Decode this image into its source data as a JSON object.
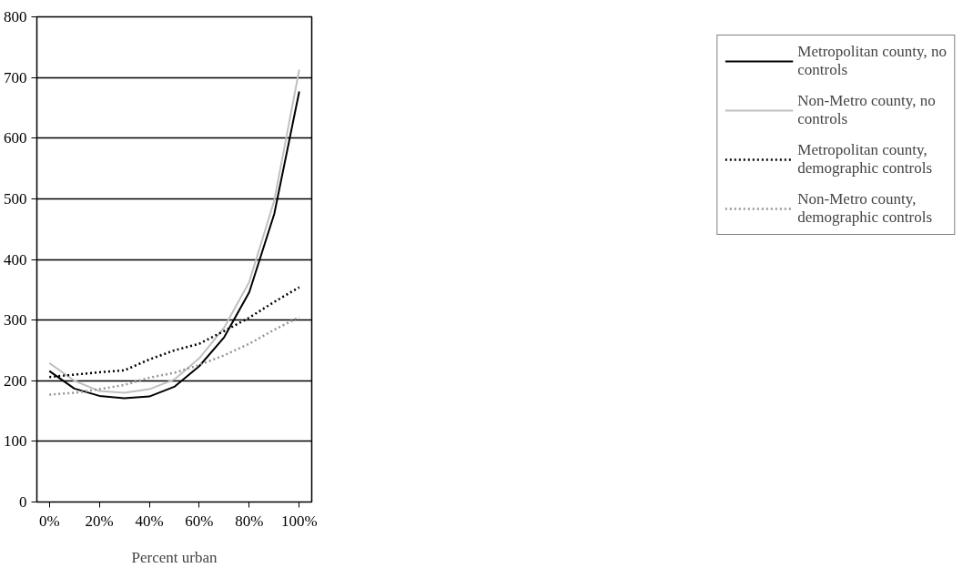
{
  "chart_data": {
    "type": "line",
    "xlabel": "Percent urban",
    "x": [
      0,
      10,
      20,
      30,
      40,
      50,
      60,
      70,
      80,
      90,
      100
    ],
    "xlim": [
      -5,
      105
    ],
    "xticks": [
      {
        "value": 0,
        "label": "0%"
      },
      {
        "value": 20,
        "label": "20%"
      },
      {
        "value": 40,
        "label": "40%"
      },
      {
        "value": 60,
        "label": "60%"
      },
      {
        "value": 80,
        "label": "80%"
      },
      {
        "value": 100,
        "label": "100%"
      }
    ],
    "ylim": [
      0,
      800
    ],
    "yticks": [
      0,
      100,
      200,
      300,
      400,
      500,
      600,
      700,
      800
    ],
    "grid": "y",
    "legend": "right",
    "marker": "none",
    "series": [
      {
        "name": "Metropolitan county, no controls",
        "color": "#000000",
        "line_style": "solid",
        "values": [
          216,
          187,
          175,
          171,
          174,
          190,
          224,
          272,
          346,
          475,
          677
        ]
      },
      {
        "name": "Non-Metro county, no controls",
        "color": "#c0c0c0",
        "line_style": "solid",
        "values": [
          229,
          200,
          183,
          180,
          186,
          202,
          237,
          288,
          363,
          497,
          713
        ]
      },
      {
        "name": "Metropolitan county, demographic controls",
        "color": "#000000",
        "line_style": "dotted",
        "values": [
          206,
          210,
          214,
          217,
          235,
          250,
          261,
          282,
          304,
          330,
          354
        ]
      },
      {
        "name": "Non-Metro county, demographic controls",
        "color": "#969696",
        "line_style": "dotted",
        "values": [
          177,
          180,
          186,
          193,
          205,
          213,
          226,
          242,
          261,
          284,
          305
        ]
      }
    ]
  }
}
